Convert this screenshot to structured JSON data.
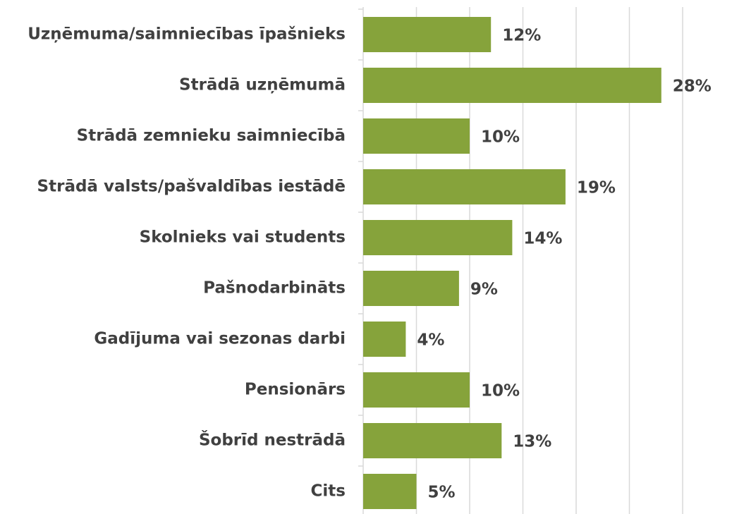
{
  "chart_data": {
    "type": "bar",
    "orientation": "horizontal",
    "categories": [
      "Uzņēmuma/saimniecības īpašnieks",
      "Strādā uzņēmumā",
      "Strādā zemnieku saimniecībā",
      "Strādā valsts/pašvaldības iestādē",
      "Skolnieks vai students",
      "Pašnodarbināts",
      "Gadījuma vai sezonas darbi",
      "Pensionārs",
      "Šobrīd nestrādā",
      "Cits"
    ],
    "values": [
      12,
      28,
      10,
      19,
      14,
      9,
      4,
      10,
      13,
      5
    ],
    "value_labels": [
      "12%",
      "28%",
      "10%",
      "19%",
      "14%",
      "9%",
      "4%",
      "10%",
      "13%",
      "5%"
    ],
    "color": "#86a33b",
    "xlim": [
      0,
      30
    ],
    "xticks": [
      0,
      5,
      10,
      15,
      20,
      25,
      30
    ],
    "grid": true
  }
}
